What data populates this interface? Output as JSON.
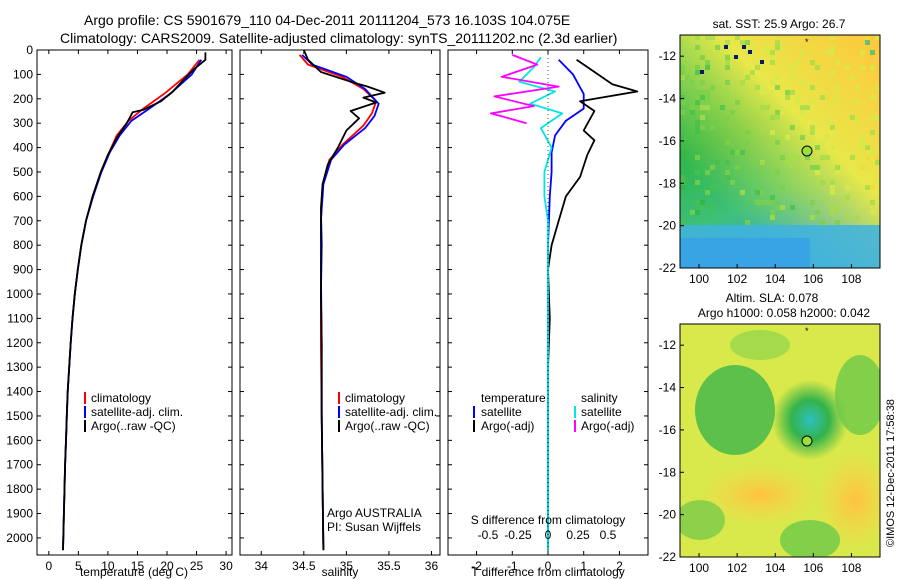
{
  "title_line1": "Argo profile: CS 5901679_110 04-Dec-2011 20111204_573 16.103S 104.075E",
  "title_line2": "Climatology: CARS2009. Satellite-adjusted climatology: synTS_20111202.nc (2.3d earlier)",
  "timestamp": "©IMOS 12-Dec-2011 17:58:38",
  "colors": {
    "climatology": "#ff0000",
    "satellite": "#0000ff",
    "argo": "#000000",
    "sat_salinity": "#00e5e5",
    "argo_salinity": "#ff00ff"
  },
  "chart_data": [
    {
      "type": "line",
      "name": "temperature",
      "xlabel": "temperature (deg C)",
      "ylabel": "depth",
      "xlim": [
        -2,
        31
      ],
      "ylim": [
        2070,
        0
      ],
      "xticks": [
        "0",
        "5",
        "10",
        "15",
        "20",
        "25",
        "30"
      ],
      "yticks": [
        "0",
        "100",
        "200",
        "300",
        "400",
        "500",
        "600",
        "700",
        "800",
        "900",
        "1000",
        "1100",
        "1200",
        "1300",
        "1400",
        "1500",
        "1600",
        "1700",
        "1800",
        "1900",
        "2000"
      ],
      "legend": [
        "climatology",
        "satellite-adj. clim.",
        "Argo(..raw -QC)"
      ],
      "series": [
        {
          "name": "climatology",
          "color": "#ff0000",
          "points": [
            [
              25.5,
              40
            ],
            [
              23.5,
              100
            ],
            [
              19.5,
              180
            ],
            [
              16,
              240
            ],
            [
              13.5,
              290
            ],
            [
              11.5,
              350
            ],
            [
              10.2,
              420
            ],
            [
              8.8,
              500
            ],
            [
              7.5,
              600
            ],
            [
              6.3,
              700
            ],
            [
              5.5,
              800
            ],
            [
              4.9,
              900
            ],
            [
              4.4,
              1000
            ],
            [
              4,
              1100
            ],
            [
              3.7,
              1200
            ],
            [
              3.45,
              1300
            ],
            [
              3.2,
              1400
            ],
            [
              3.05,
              1500
            ],
            [
              2.9,
              1600
            ],
            [
              2.75,
              1700
            ],
            [
              2.65,
              1800
            ],
            [
              2.55,
              1900
            ],
            [
              2.45,
              2000
            ],
            [
              2.4,
              2050
            ]
          ]
        },
        {
          "name": "satellite-adj. clim.",
          "color": "#0000ff",
          "points": [
            [
              25.8,
              40
            ],
            [
              24.2,
              100
            ],
            [
              20.5,
              180
            ],
            [
              17,
              240
            ],
            [
              14,
              290
            ],
            [
              12,
              350
            ],
            [
              10.3,
              420
            ],
            [
              8.9,
              500
            ],
            [
              7.5,
              600
            ],
            [
              6.3,
              700
            ],
            [
              5.5,
              800
            ],
            [
              4.9,
              900
            ],
            [
              4.4,
              1000
            ],
            [
              4,
              1100
            ],
            [
              3.7,
              1200
            ],
            [
              3.45,
              1300
            ],
            [
              3.2,
              1400
            ],
            [
              3.05,
              1500
            ],
            [
              2.9,
              1600
            ],
            [
              2.75,
              1700
            ],
            [
              2.65,
              1800
            ],
            [
              2.55,
              1900
            ],
            [
              2.45,
              2000
            ],
            [
              2.4,
              2050
            ]
          ]
        },
        {
          "name": "Argo(..raw -QC)",
          "color": "#000000",
          "points": [
            [
              26.5,
              10
            ],
            [
              26.5,
              40
            ],
            [
              24.5,
              80
            ],
            [
              22.5,
              130
            ],
            [
              21,
              170
            ],
            [
              19,
              210
            ],
            [
              16,
              245
            ],
            [
              14.2,
              255
            ],
            [
              13.2,
              300
            ],
            [
              11.5,
              360
            ],
            [
              10,
              430
            ],
            [
              8.8,
              500
            ],
            [
              7.4,
              600
            ],
            [
              6.3,
              700
            ],
            [
              5.5,
              800
            ],
            [
              4.9,
              900
            ],
            [
              4.4,
              1000
            ],
            [
              4,
              1100
            ],
            [
              3.7,
              1200
            ],
            [
              3.45,
              1300
            ],
            [
              3.2,
              1400
            ],
            [
              3.05,
              1500
            ],
            [
              2.9,
              1600
            ],
            [
              2.75,
              1700
            ],
            [
              2.65,
              1800
            ],
            [
              2.55,
              1900
            ],
            [
              2.45,
              2000
            ],
            [
              2.4,
              2050
            ]
          ]
        }
      ]
    },
    {
      "type": "line",
      "name": "salinity",
      "xlabel": "salinity",
      "xlim": [
        33.75,
        36.1
      ],
      "ylim": [
        2070,
        0
      ],
      "xticks": [
        "34",
        "34.5",
        "35",
        "35.5",
        "36"
      ],
      "legend": [
        "climatology",
        "satellite-adj. clim.",
        "Argo(..raw -QC)"
      ],
      "footer": [
        "Argo AUSTRALIA",
        "PI: Susan Wijffels"
      ],
      "series": [
        {
          "name": "climatology",
          "color": "#ff0000",
          "points": [
            [
              34.45,
              20
            ],
            [
              34.55,
              60
            ],
            [
              34.95,
              110
            ],
            [
              35.2,
              160
            ],
            [
              35.35,
              210
            ],
            [
              35.3,
              260
            ],
            [
              35.2,
              310
            ],
            [
              34.95,
              390
            ],
            [
              34.8,
              450
            ],
            [
              34.72,
              550
            ],
            [
              34.7,
              700
            ],
            [
              34.7,
              900
            ],
            [
              34.7,
              1200
            ],
            [
              34.71,
              1500
            ],
            [
              34.72,
              1800
            ],
            [
              34.73,
              2050
            ]
          ]
        },
        {
          "name": "satellite-adj. clim.",
          "color": "#0000ff",
          "points": [
            [
              34.48,
              20
            ],
            [
              34.6,
              60
            ],
            [
              35,
              110
            ],
            [
              35.22,
              160
            ],
            [
              35.38,
              220
            ],
            [
              35.33,
              270
            ],
            [
              35.22,
              320
            ],
            [
              34.97,
              390
            ],
            [
              34.82,
              450
            ],
            [
              34.73,
              550
            ],
            [
              34.7,
              700
            ],
            [
              34.7,
              900
            ],
            [
              34.71,
              1200
            ],
            [
              34.71,
              1500
            ],
            [
              34.72,
              1800
            ],
            [
              34.73,
              2050
            ]
          ]
        },
        {
          "name": "Argo(..raw -QC)",
          "color": "#000000",
          "points": [
            [
              34.5,
              0
            ],
            [
              34.55,
              40
            ],
            [
              34.7,
              90
            ],
            [
              35.05,
              130
            ],
            [
              35.25,
              150
            ],
            [
              35.45,
              175
            ],
            [
              35.2,
              195
            ],
            [
              35.35,
              215
            ],
            [
              35.05,
              250
            ],
            [
              35.15,
              280
            ],
            [
              35,
              330
            ],
            [
              34.9,
              400
            ],
            [
              34.78,
              470
            ],
            [
              34.72,
              550
            ],
            [
              34.7,
              650
            ],
            [
              34.71,
              800
            ],
            [
              34.7,
              1000
            ],
            [
              34.71,
              1200
            ],
            [
              34.71,
              1500
            ],
            [
              34.72,
              1800
            ],
            [
              34.73,
              2050
            ]
          ]
        }
      ]
    },
    {
      "type": "line",
      "name": "differences",
      "xlabel": "T difference from climatology",
      "xlim": [
        -2.8,
        2.8
      ],
      "ylim": [
        2070,
        0
      ],
      "xticks": [
        "-2",
        "-1",
        "0",
        "1",
        "2"
      ],
      "top_axis_label": "S difference from climatology",
      "top_xticks": [
        "-0.5",
        "-0.25",
        "0",
        "0.25",
        "0.5"
      ],
      "legend_temperature": [
        "temperature",
        "satellite",
        "Argo(-adj)"
      ],
      "legend_salinity": [
        "salinity",
        "satellite",
        "Argo(-adj)"
      ],
      "series": [
        {
          "name": "temperature satellite",
          "color": "#0000ff",
          "points": [
            [
              0.3,
              40
            ],
            [
              0.7,
              100
            ],
            [
              1,
              180
            ],
            [
              1,
              240
            ],
            [
              0.5,
              290
            ],
            [
              0.2,
              350
            ],
            [
              0.1,
              420
            ],
            [
              0.1,
              500
            ],
            [
              0.05,
              600
            ],
            [
              0,
              800
            ],
            [
              0,
              1200
            ],
            [
              0,
              1600
            ],
            [
              0,
              2050
            ]
          ]
        },
        {
          "name": "temperature Argo(-adj)",
          "color": "#000000",
          "points": [
            [
              0.8,
              40
            ],
            [
              1.2,
              80
            ],
            [
              1.8,
              140
            ],
            [
              2.5,
              170
            ],
            [
              0.9,
              210
            ],
            [
              1.3,
              250
            ],
            [
              1,
              330
            ],
            [
              1.3,
              370
            ],
            [
              1.1,
              430
            ],
            [
              0.9,
              520
            ],
            [
              0.5,
              600
            ],
            [
              0.3,
              700
            ],
            [
              0.1,
              800
            ],
            [
              0,
              900
            ],
            [
              0.05,
              1100
            ],
            [
              0,
              1300
            ],
            [
              0,
              1600
            ],
            [
              0,
              2050
            ]
          ]
        },
        {
          "name": "salinity satellite",
          "color": "#00e5e5",
          "points": [
            [
              -0.2,
              30
            ],
            [
              -0.4,
              70
            ],
            [
              -0.8,
              130
            ],
            [
              0.2,
              170
            ],
            [
              -0.5,
              220
            ],
            [
              0.4,
              260
            ],
            [
              -0.2,
              320
            ],
            [
              0.1,
              400
            ],
            [
              -0.1,
              500
            ],
            [
              -0.1,
              600
            ],
            [
              0,
              700
            ],
            [
              0,
              900
            ],
            [
              0,
              1200
            ],
            [
              0,
              1600
            ],
            [
              0,
              2050
            ]
          ]
        },
        {
          "name": "salinity Argo(-adj)",
          "color": "#ff00ff",
          "points": [
            [
              -1,
              20
            ],
            [
              -0.3,
              60
            ],
            [
              -1.3,
              110
            ],
            [
              0.3,
              150
            ],
            [
              -1.5,
              190
            ],
            [
              -0.4,
              230
            ],
            [
              -1.6,
              260
            ],
            [
              -0.6,
              300
            ]
          ]
        }
      ]
    }
  ],
  "maps": {
    "sst": {
      "title": "sat. SST: 25.9  Argo: 26.7",
      "xticks": [
        "100",
        "102",
        "104",
        "106",
        "108"
      ],
      "yticks": [
        "-12",
        "-14",
        "-16",
        "-18",
        "-20",
        "-22"
      ]
    },
    "sla": {
      "title_line1": "Altim. SLA: 0.078",
      "title_line2": "Argo h1000: 0.058  h2000: 0.042",
      "xticks": [
        "100",
        "102",
        "104",
        "106",
        "108"
      ],
      "yticks": [
        "-12",
        "-14",
        "-16",
        "-18",
        "-20",
        "-22"
      ]
    }
  }
}
